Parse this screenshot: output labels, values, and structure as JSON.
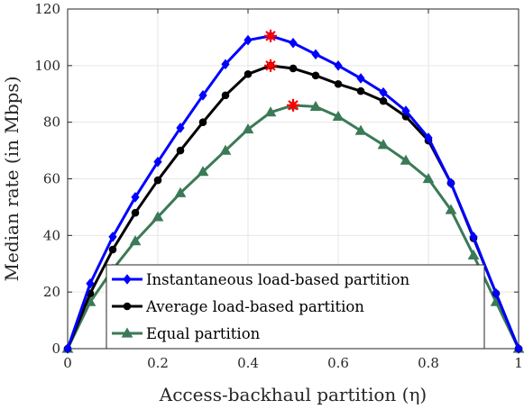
{
  "chart_data": {
    "type": "line",
    "xlabel": "Access-backhaul partition (η)",
    "ylabel": "Median rate (in Mbps)",
    "xlim": [
      0,
      1
    ],
    "ylim": [
      0,
      120
    ],
    "x_ticks": [
      0,
      0.2,
      0.4,
      0.6,
      0.8,
      1
    ],
    "x_tick_labels": [
      "0",
      "0.2",
      "0.4",
      "0.6",
      "0.8",
      "1"
    ],
    "y_ticks": [
      0,
      20,
      40,
      60,
      80,
      100,
      120
    ],
    "y_tick_labels": [
      "0",
      "20",
      "40",
      "60",
      "80",
      "100",
      "120"
    ],
    "grid": true,
    "legend_position": "bottom-center",
    "x": [
      0,
      0.05,
      0.1,
      0.15,
      0.2,
      0.25,
      0.3,
      0.35,
      0.4,
      0.45,
      0.5,
      0.55,
      0.6,
      0.65,
      0.7,
      0.75,
      0.8,
      0.85,
      0.9,
      0.95,
      1
    ],
    "series": [
      {
        "name": "Instantaneous load-based partition",
        "color": "#0000ff",
        "marker": "diamond",
        "values": [
          0,
          23,
          39.5,
          53.5,
          66,
          78,
          89.5,
          100.5,
          109,
          110.5,
          108,
          104,
          100,
          95.5,
          90.5,
          84,
          74.5,
          58.5,
          39.5,
          19.5,
          0
        ],
        "peak_x": 0.45,
        "peak_y": 110.5
      },
      {
        "name": "Average load-based partition",
        "color": "#000000",
        "marker": "circle",
        "values": [
          0,
          19.5,
          35,
          48,
          59.5,
          70,
          80,
          89.5,
          97,
          100,
          99,
          96.5,
          93.5,
          91,
          87.5,
          82,
          73.5,
          58.5,
          39,
          19.5,
          0
        ],
        "peak_x": 0.45,
        "peak_y": 100
      },
      {
        "name": "Equal partition",
        "color": "#3b7a57",
        "marker": "triangle",
        "values": [
          0,
          16.5,
          28,
          38,
          46.5,
          55,
          62.5,
          70,
          77.5,
          83.5,
          86,
          85.5,
          82,
          77,
          72,
          66.5,
          60,
          49,
          33,
          16.5,
          0
        ],
        "peak_x": 0.5,
        "peak_y": 86
      }
    ],
    "peak_marker_color": "#ff0000"
  }
}
